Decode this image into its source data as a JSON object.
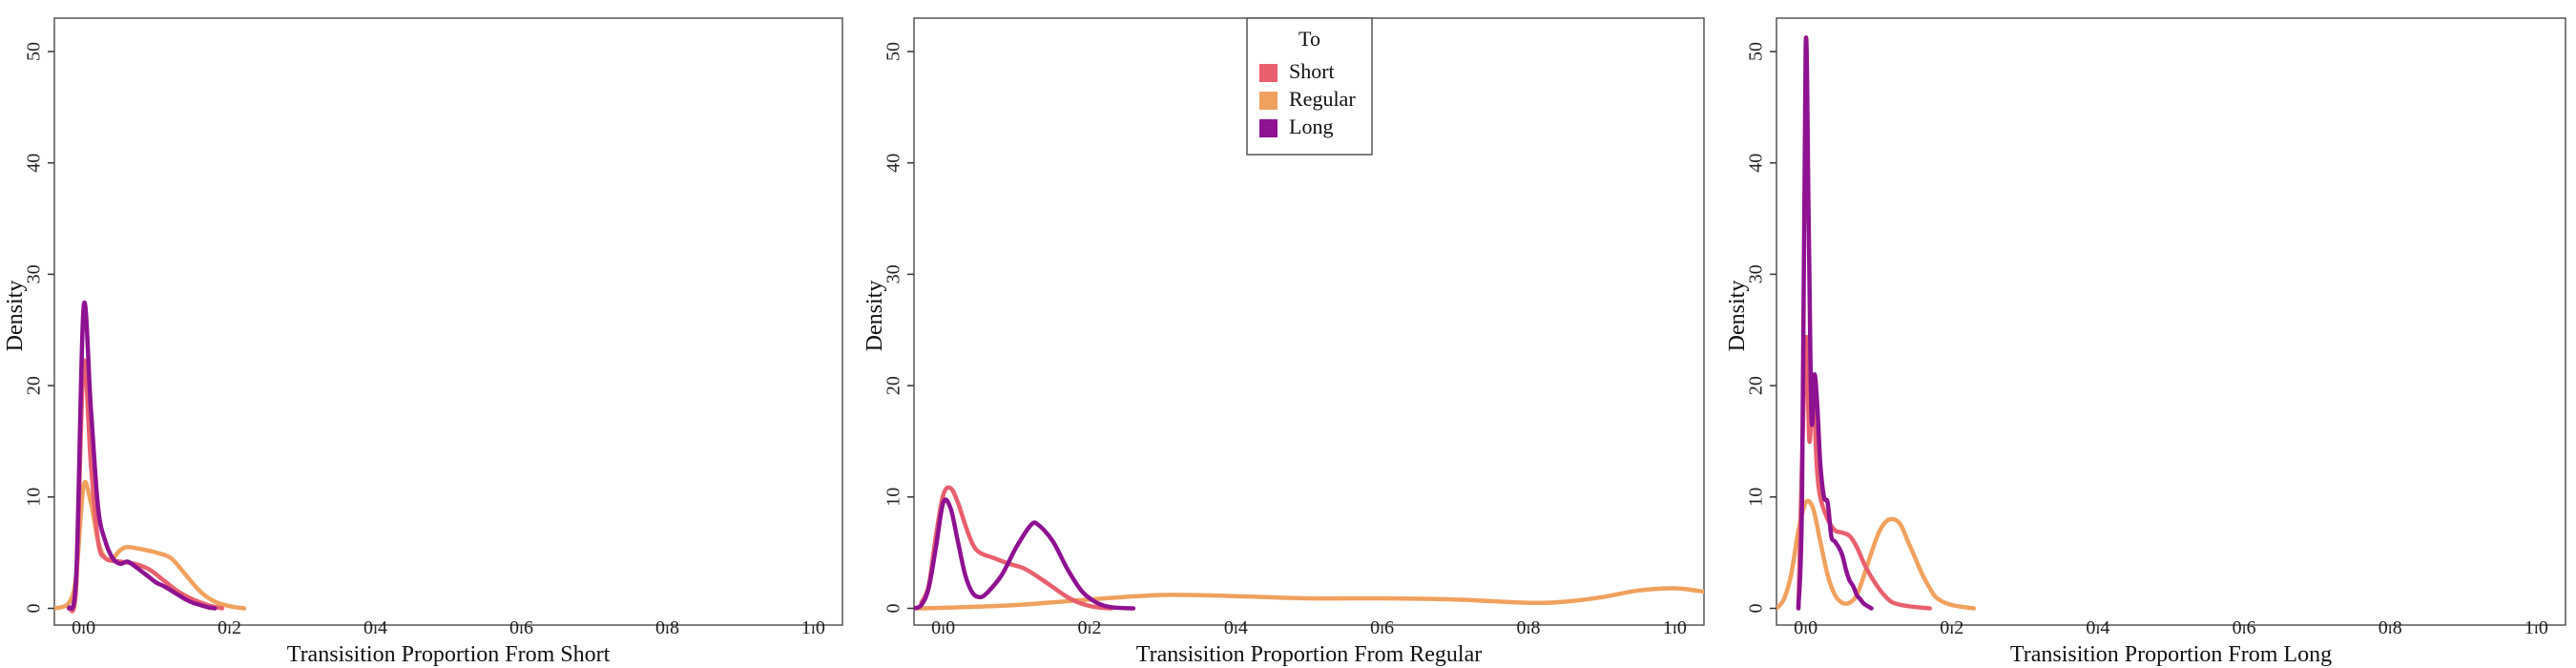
{
  "chart_data": [
    {
      "type": "line",
      "xlabel": "Transisition Proportion From Short",
      "ylabel": "Density",
      "xlim": [
        -0.04,
        1.04
      ],
      "ylim": [
        -1.5,
        53
      ],
      "xticks": [
        "0.0",
        "0.2",
        "0.4",
        "0.6",
        "0.8",
        "1.0"
      ],
      "yticks": [
        "0",
        "10",
        "20",
        "30",
        "40",
        "50"
      ],
      "series": [
        {
          "name": "Regular",
          "color": "#F0A15E",
          "points": [
            [
              -0.04,
              0.0
            ],
            [
              -0.02,
              0.5
            ],
            [
              -0.01,
              3.0
            ],
            [
              0.0,
              11.0
            ],
            [
              0.01,
              9.5
            ],
            [
              0.02,
              6.0
            ],
            [
              0.03,
              4.5
            ],
            [
              0.04,
              4.5
            ],
            [
              0.05,
              5.2
            ],
            [
              0.06,
              5.5
            ],
            [
              0.08,
              5.3
            ],
            [
              0.1,
              5.0
            ],
            [
              0.12,
              4.5
            ],
            [
              0.14,
              3.0
            ],
            [
              0.16,
              1.5
            ],
            [
              0.18,
              0.6
            ],
            [
              0.2,
              0.2
            ],
            [
              0.22,
              0.0
            ]
          ]
        },
        {
          "name": "Short",
          "color": "#E8606E",
          "points": [
            [
              -0.02,
              0.0
            ],
            [
              -0.01,
              2.0
            ],
            [
              0.0,
              22.0
            ],
            [
              0.01,
              13.0
            ],
            [
              0.02,
              6.0
            ],
            [
              0.03,
              4.5
            ],
            [
              0.05,
              4.2
            ],
            [
              0.07,
              4.0
            ],
            [
              0.09,
              3.5
            ],
            [
              0.11,
              2.5
            ],
            [
              0.13,
              1.5
            ],
            [
              0.15,
              0.8
            ],
            [
              0.17,
              0.3
            ],
            [
              0.19,
              0.0
            ]
          ]
        },
        {
          "name": "Long",
          "color": "#8E1291",
          "points": [
            [
              -0.02,
              0.0
            ],
            [
              -0.01,
              3.0
            ],
            [
              0.0,
              27.0
            ],
            [
              0.01,
              18.0
            ],
            [
              0.02,
              9.0
            ],
            [
              0.03,
              6.0
            ],
            [
              0.04,
              4.5
            ],
            [
              0.05,
              4.0
            ],
            [
              0.06,
              4.2
            ],
            [
              0.07,
              3.8
            ],
            [
              0.08,
              3.3
            ],
            [
              0.09,
              2.8
            ],
            [
              0.1,
              2.3
            ],
            [
              0.11,
              2.0
            ],
            [
              0.12,
              1.6
            ],
            [
              0.13,
              1.2
            ],
            [
              0.14,
              0.8
            ],
            [
              0.15,
              0.5
            ],
            [
              0.16,
              0.3
            ],
            [
              0.17,
              0.1
            ],
            [
              0.18,
              0.0
            ]
          ]
        }
      ]
    },
    {
      "type": "line",
      "xlabel": "Transisition Proportion From Regular",
      "ylabel": "Density",
      "xlim": [
        -0.04,
        1.04
      ],
      "ylim": [
        -1.5,
        53
      ],
      "xticks": [
        "0.0",
        "0.2",
        "0.4",
        "0.6",
        "0.8",
        "1.0"
      ],
      "yticks": [
        "0",
        "10",
        "20",
        "30",
        "40",
        "50"
      ],
      "legend": {
        "title": "To",
        "position": "top-center",
        "entries": [
          "Short",
          "Regular",
          "Long"
        ]
      },
      "series": [
        {
          "name": "Regular",
          "color": "#F0A15E",
          "points": [
            [
              -0.04,
              0.0
            ],
            [
              0.0,
              0.05
            ],
            [
              0.1,
              0.3
            ],
            [
              0.2,
              0.8
            ],
            [
              0.3,
              1.2
            ],
            [
              0.4,
              1.1
            ],
            [
              0.5,
              0.9
            ],
            [
              0.6,
              0.9
            ],
            [
              0.7,
              0.8
            ],
            [
              0.8,
              0.5
            ],
            [
              0.85,
              0.6
            ],
            [
              0.9,
              1.0
            ],
            [
              0.95,
              1.6
            ],
            [
              1.0,
              1.8
            ],
            [
              1.04,
              1.5
            ]
          ]
        },
        {
          "name": "Short",
          "color": "#E8606E",
          "points": [
            [
              -0.03,
              0.5
            ],
            [
              -0.02,
              2.0
            ],
            [
              -0.01,
              6.5
            ],
            [
              0.0,
              10.2
            ],
            [
              0.01,
              10.8
            ],
            [
              0.02,
              9.5
            ],
            [
              0.03,
              7.5
            ],
            [
              0.04,
              5.8
            ],
            [
              0.05,
              5.0
            ],
            [
              0.07,
              4.5
            ],
            [
              0.09,
              4.0
            ],
            [
              0.11,
              3.6
            ],
            [
              0.13,
              2.8
            ],
            [
              0.15,
              1.9
            ],
            [
              0.17,
              1.0
            ],
            [
              0.19,
              0.4
            ],
            [
              0.21,
              0.1
            ],
            [
              0.23,
              0.0
            ]
          ]
        },
        {
          "name": "Long",
          "color": "#8E1291",
          "points": [
            [
              -0.04,
              0.0
            ],
            [
              -0.03,
              0.3
            ],
            [
              -0.02,
              1.8
            ],
            [
              -0.01,
              5.5
            ],
            [
              0.0,
              9.5
            ],
            [
              0.01,
              9.0
            ],
            [
              0.02,
              6.0
            ],
            [
              0.03,
              3.0
            ],
            [
              0.04,
              1.4
            ],
            [
              0.05,
              1.0
            ],
            [
              0.06,
              1.4
            ],
            [
              0.08,
              3.0
            ],
            [
              0.1,
              5.5
            ],
            [
              0.12,
              7.5
            ],
            [
              0.13,
              7.5
            ],
            [
              0.15,
              6.0
            ],
            [
              0.17,
              3.5
            ],
            [
              0.19,
              1.5
            ],
            [
              0.21,
              0.5
            ],
            [
              0.23,
              0.1
            ],
            [
              0.26,
              0.0
            ]
          ]
        }
      ]
    },
    {
      "type": "line",
      "xlabel": "Transisition Proportion From Long",
      "ylabel": "Density",
      "xlim": [
        -0.04,
        1.04
      ],
      "ylim": [
        -1.5,
        53
      ],
      "xticks": [
        "0.0",
        "0.2",
        "0.4",
        "0.6",
        "0.8",
        "1.0"
      ],
      "yticks": [
        "0",
        "10",
        "20",
        "30",
        "40",
        "50"
      ],
      "series": [
        {
          "name": "Regular",
          "color": "#F0A15E",
          "points": [
            [
              -0.04,
              0.0
            ],
            [
              -0.03,
              0.8
            ],
            [
              -0.02,
              3.0
            ],
            [
              -0.01,
              7.0
            ],
            [
              0.0,
              9.5
            ],
            [
              0.01,
              9.0
            ],
            [
              0.02,
              6.0
            ],
            [
              0.03,
              3.0
            ],
            [
              0.04,
              1.2
            ],
            [
              0.05,
              0.5
            ],
            [
              0.06,
              0.5
            ],
            [
              0.07,
              1.2
            ],
            [
              0.08,
              3.0
            ],
            [
              0.09,
              5.0
            ],
            [
              0.1,
              6.8
            ],
            [
              0.11,
              7.8
            ],
            [
              0.12,
              8.0
            ],
            [
              0.13,
              7.5
            ],
            [
              0.14,
              6.0
            ],
            [
              0.15,
              4.5
            ],
            [
              0.16,
              3.0
            ],
            [
              0.17,
              1.8
            ],
            [
              0.18,
              0.9
            ],
            [
              0.2,
              0.3
            ],
            [
              0.23,
              0.0
            ]
          ]
        },
        {
          "name": "Short",
          "color": "#E8606E",
          "points": [
            [
              -0.01,
              0.0
            ],
            [
              0.0,
              24.0
            ],
            [
              0.005,
              15.0
            ],
            [
              0.01,
              20.0
            ],
            [
              0.015,
              13.0
            ],
            [
              0.02,
              10.0
            ],
            [
              0.03,
              8.0
            ],
            [
              0.04,
              7.0
            ],
            [
              0.05,
              6.8
            ],
            [
              0.06,
              6.5
            ],
            [
              0.07,
              5.5
            ],
            [
              0.08,
              4.0
            ],
            [
              0.09,
              2.8
            ],
            [
              0.1,
              1.8
            ],
            [
              0.11,
              1.0
            ],
            [
              0.12,
              0.5
            ],
            [
              0.14,
              0.2
            ],
            [
              0.17,
              0.0
            ]
          ]
        },
        {
          "name": "Long",
          "color": "#8E1291",
          "points": [
            [
              -0.01,
              0.0
            ],
            [
              -0.005,
              10.0
            ],
            [
              0.0,
              50.5
            ],
            [
              0.004,
              35.0
            ],
            [
              0.008,
              17.0
            ],
            [
              0.012,
              21.0
            ],
            [
              0.016,
              18.0
            ],
            [
              0.02,
              13.0
            ],
            [
              0.025,
              10.0
            ],
            [
              0.03,
              9.5
            ],
            [
              0.035,
              6.5
            ],
            [
              0.04,
              6.0
            ],
            [
              0.045,
              5.5
            ],
            [
              0.05,
              4.8
            ],
            [
              0.055,
              3.5
            ],
            [
              0.06,
              2.5
            ],
            [
              0.065,
              2.0
            ],
            [
              0.07,
              1.2
            ],
            [
              0.075,
              0.8
            ],
            [
              0.08,
              0.4
            ],
            [
              0.09,
              0.0
            ]
          ]
        }
      ]
    }
  ]
}
